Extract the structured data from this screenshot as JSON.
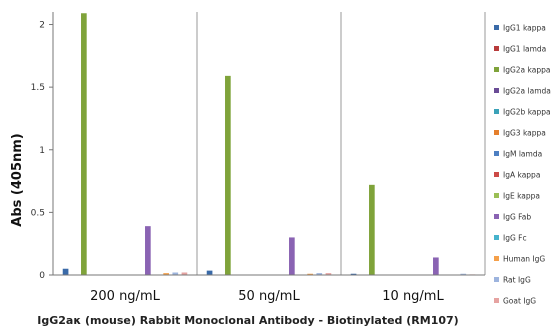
{
  "chart_data": {
    "type": "bar",
    "title": "",
    "xlabel": "IgG2aκ (mouse) Rabbit Monoclonal Antibody - Biotinylated (RM107)",
    "ylabel": "Abs (405nm)",
    "ylim": [
      0,
      2.1
    ],
    "yticks": [
      0,
      0.5,
      1,
      1.5,
      2
    ],
    "ytick_labels": [
      "0",
      "0.5",
      "1",
      "1.5",
      "2"
    ],
    "grid": "vertical separators between groups",
    "legend_position": "right",
    "categories": [
      "200 ng/mL",
      "50 ng/mL",
      "10 ng/mL"
    ],
    "series": [
      {
        "name": "IgG1 kappa",
        "color": "#3a6aa8",
        "values": [
          0.05,
          0.035,
          0.01
        ]
      },
      {
        "name": "IgG1 lamda",
        "color": "#b83b3b",
        "values": [
          0.0,
          0.0,
          0.0
        ]
      },
      {
        "name": "IgG2a kappa",
        "color": "#7fa33a",
        "values": [
          2.09,
          1.59,
          0.72
        ]
      },
      {
        "name": "IgG2a lamda",
        "color": "#6a4c96",
        "values": [
          0.0,
          0.0,
          0.0
        ]
      },
      {
        "name": "IgG2b kappa",
        "color": "#3aa2b8",
        "values": [
          0.0,
          0.0,
          0.0
        ]
      },
      {
        "name": "IgG3 kappa",
        "color": "#e57f2c",
        "values": [
          0.0,
          0.0,
          0.0
        ]
      },
      {
        "name": "IgM lamda",
        "color": "#4d7fc2",
        "values": [
          0.0,
          0.0,
          0.0
        ]
      },
      {
        "name": "IgA kappa",
        "color": "#cc4a47",
        "values": [
          0.0,
          0.0,
          0.0
        ]
      },
      {
        "name": "IgE kappa",
        "color": "#9bbf55",
        "values": [
          0.0,
          0.0,
          0.0
        ]
      },
      {
        "name": "IgG Fab",
        "color": "#8a63b3",
        "values": [
          0.39,
          0.3,
          0.14
        ]
      },
      {
        "name": "IgG Fc",
        "color": "#46b3cc",
        "values": [
          0.0,
          0.0,
          0.0
        ]
      },
      {
        "name": "Human IgG",
        "color": "#f5a04a",
        "values": [
          0.015,
          0.01,
          0.0
        ]
      },
      {
        "name": "Rat IgG",
        "color": "#9db4de",
        "values": [
          0.02,
          0.015,
          0.01
        ]
      },
      {
        "name": "Goat IgG",
        "color": "#e6a3a1",
        "values": [
          0.02,
          0.015,
          0.005
        ]
      }
    ]
  }
}
